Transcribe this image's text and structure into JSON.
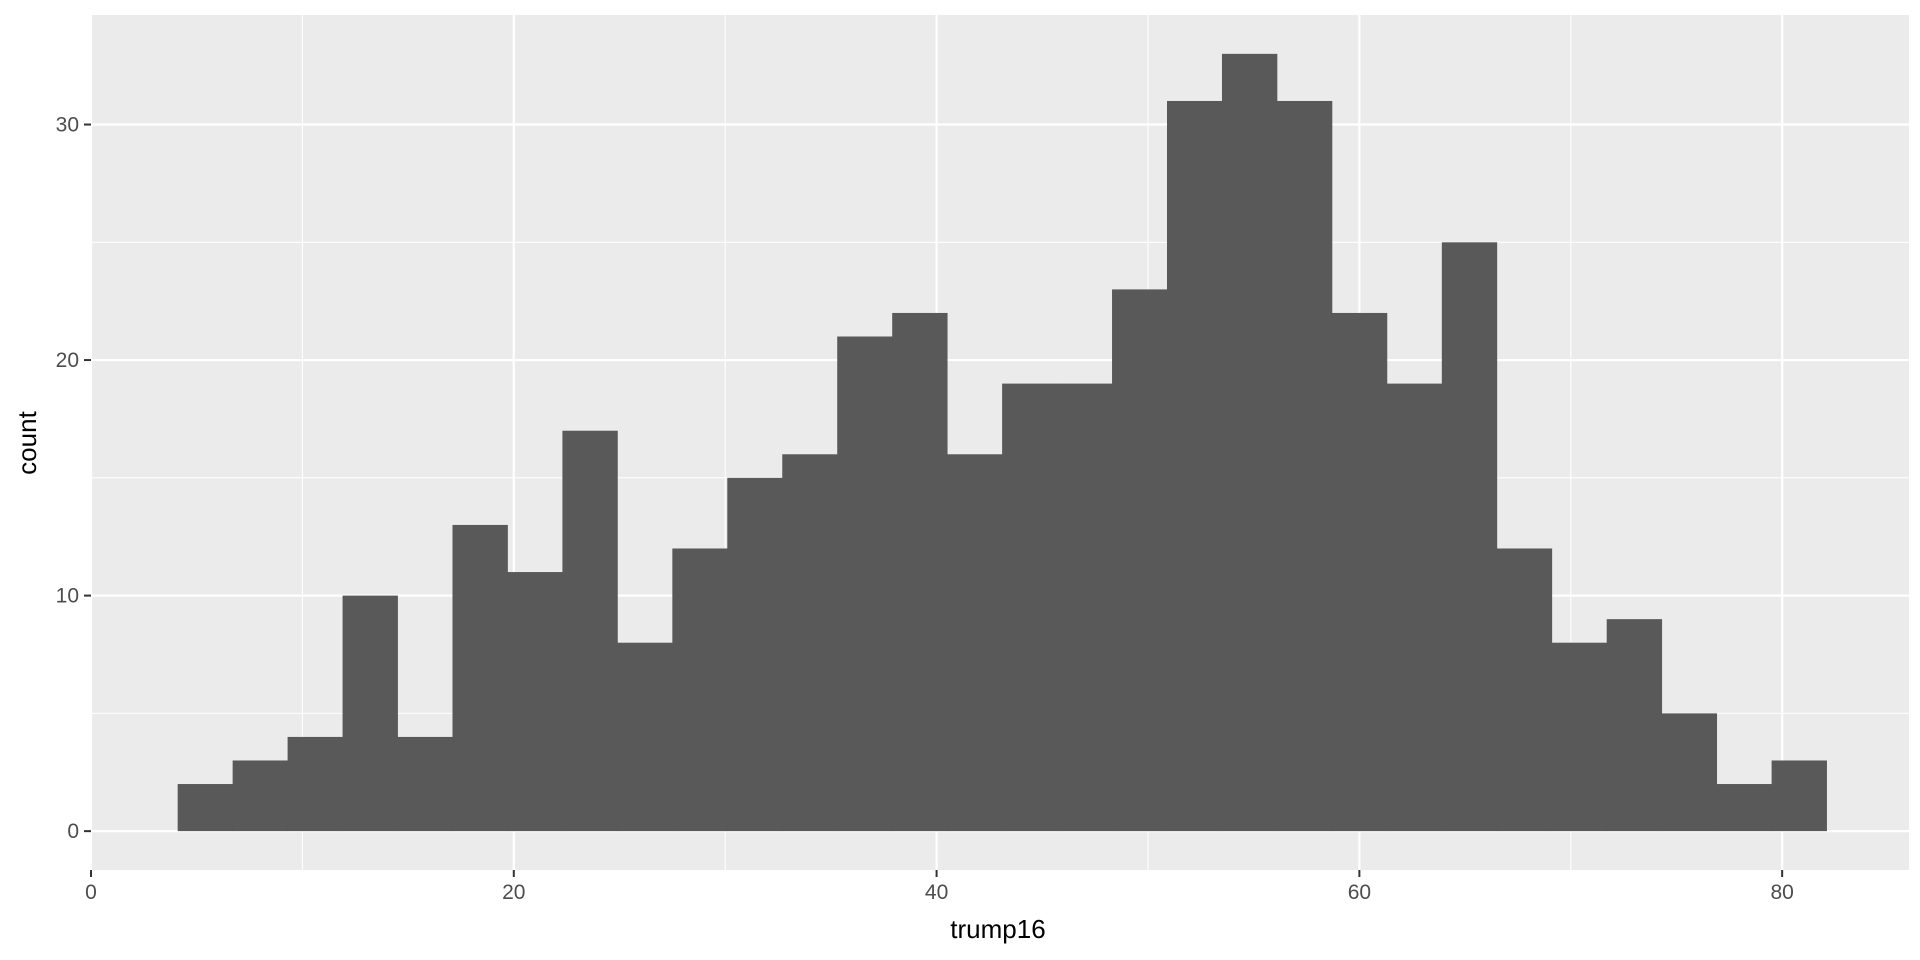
{
  "chart_data": {
    "type": "bar",
    "subtype": "histogram",
    "title": "",
    "xlabel": "trump16",
    "ylabel": "count",
    "bin_width": 2.6,
    "bins": [
      {
        "x0": 4.1,
        "x1": 6.7,
        "count": 2
      },
      {
        "x0": 6.7,
        "x1": 9.3,
        "count": 3
      },
      {
        "x0": 9.3,
        "x1": 11.9,
        "count": 4
      },
      {
        "x0": 11.9,
        "x1": 14.5,
        "count": 10
      },
      {
        "x0": 14.5,
        "x1": 17.1,
        "count": 4
      },
      {
        "x0": 17.1,
        "x1": 19.7,
        "count": 13
      },
      {
        "x0": 19.7,
        "x1": 22.3,
        "count": 11
      },
      {
        "x0": 22.3,
        "x1": 24.9,
        "count": 17
      },
      {
        "x0": 24.9,
        "x1": 27.5,
        "count": 8
      },
      {
        "x0": 27.5,
        "x1": 30.1,
        "count": 12
      },
      {
        "x0": 30.1,
        "x1": 32.7,
        "count": 15
      },
      {
        "x0": 32.7,
        "x1": 35.3,
        "count": 16
      },
      {
        "x0": 35.3,
        "x1": 37.9,
        "count": 21
      },
      {
        "x0": 37.9,
        "x1": 40.5,
        "count": 22
      },
      {
        "x0": 40.5,
        "x1": 43.1,
        "count": 16
      },
      {
        "x0": 43.1,
        "x1": 45.7,
        "count": 19
      },
      {
        "x0": 45.7,
        "x1": 48.3,
        "count": 19
      },
      {
        "x0": 48.3,
        "x1": 50.9,
        "count": 23
      },
      {
        "x0": 50.9,
        "x1": 53.5,
        "count": 31
      },
      {
        "x0": 53.5,
        "x1": 56.1,
        "count": 33
      },
      {
        "x0": 56.1,
        "x1": 58.7,
        "count": 31
      },
      {
        "x0": 58.7,
        "x1": 61.3,
        "count": 22
      },
      {
        "x0": 61.3,
        "x1": 63.9,
        "count": 19
      },
      {
        "x0": 63.9,
        "x1": 66.5,
        "count": 25
      },
      {
        "x0": 66.5,
        "x1": 69.1,
        "count": 12
      },
      {
        "x0": 69.1,
        "x1": 71.7,
        "count": 8
      },
      {
        "x0": 71.7,
        "x1": 74.3,
        "count": 9
      },
      {
        "x0": 74.3,
        "x1": 76.9,
        "count": 5
      },
      {
        "x0": 76.9,
        "x1": 79.5,
        "count": 2
      },
      {
        "x0": 79.5,
        "x1": 82.1,
        "count": 3
      }
    ],
    "xlim": [
      0,
      86
    ],
    "ylim": [
      -1.65,
      34.65
    ],
    "x_ticks": [
      0,
      20,
      40,
      60,
      80
    ],
    "x_minor_ticks": [
      10,
      30,
      50,
      70
    ],
    "y_ticks": [
      0,
      10,
      20,
      30
    ],
    "y_minor_ticks": [
      5,
      15,
      25
    ],
    "grid": true,
    "legend": "none",
    "colors": {
      "bar_fill": "#595959",
      "panel_background": "#ebebeb",
      "grid_line": "#ffffff",
      "tick_text": "#4d4d4d",
      "axis_title": "#000000"
    }
  }
}
